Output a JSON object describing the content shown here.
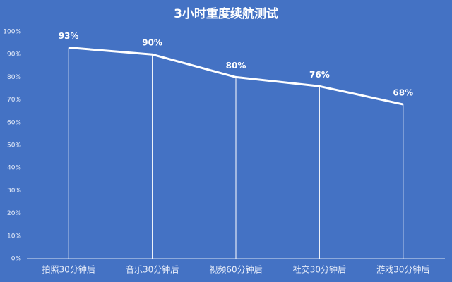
{
  "chart_data": {
    "type": "line",
    "title": "3小时重度续航测试",
    "categories": [
      "拍照30分钟后",
      "音乐30分钟后",
      "视频60分钟后",
      "社交30分钟后",
      "游戏30分钟后"
    ],
    "values": [
      93,
      90,
      80,
      76,
      68
    ],
    "value_labels": [
      "93%",
      "90%",
      "80%",
      "76%",
      "68%"
    ],
    "color": "#ffffff",
    "ylim": [
      0,
      100
    ],
    "yticks": [
      {
        "value": 0,
        "label": "0%"
      },
      {
        "value": 10,
        "label": "10%"
      },
      {
        "value": 20,
        "label": "20%"
      },
      {
        "value": 30,
        "label": "30%"
      },
      {
        "value": 40,
        "label": "40%"
      },
      {
        "value": 50,
        "label": "50%"
      },
      {
        "value": 60,
        "label": "60%"
      },
      {
        "value": 70,
        "label": "70%"
      },
      {
        "value": 80,
        "label": "80%"
      },
      {
        "value": 90,
        "label": "90%"
      },
      {
        "value": 100,
        "label": "100%"
      }
    ],
    "grid": false,
    "drop_lines": true
  }
}
